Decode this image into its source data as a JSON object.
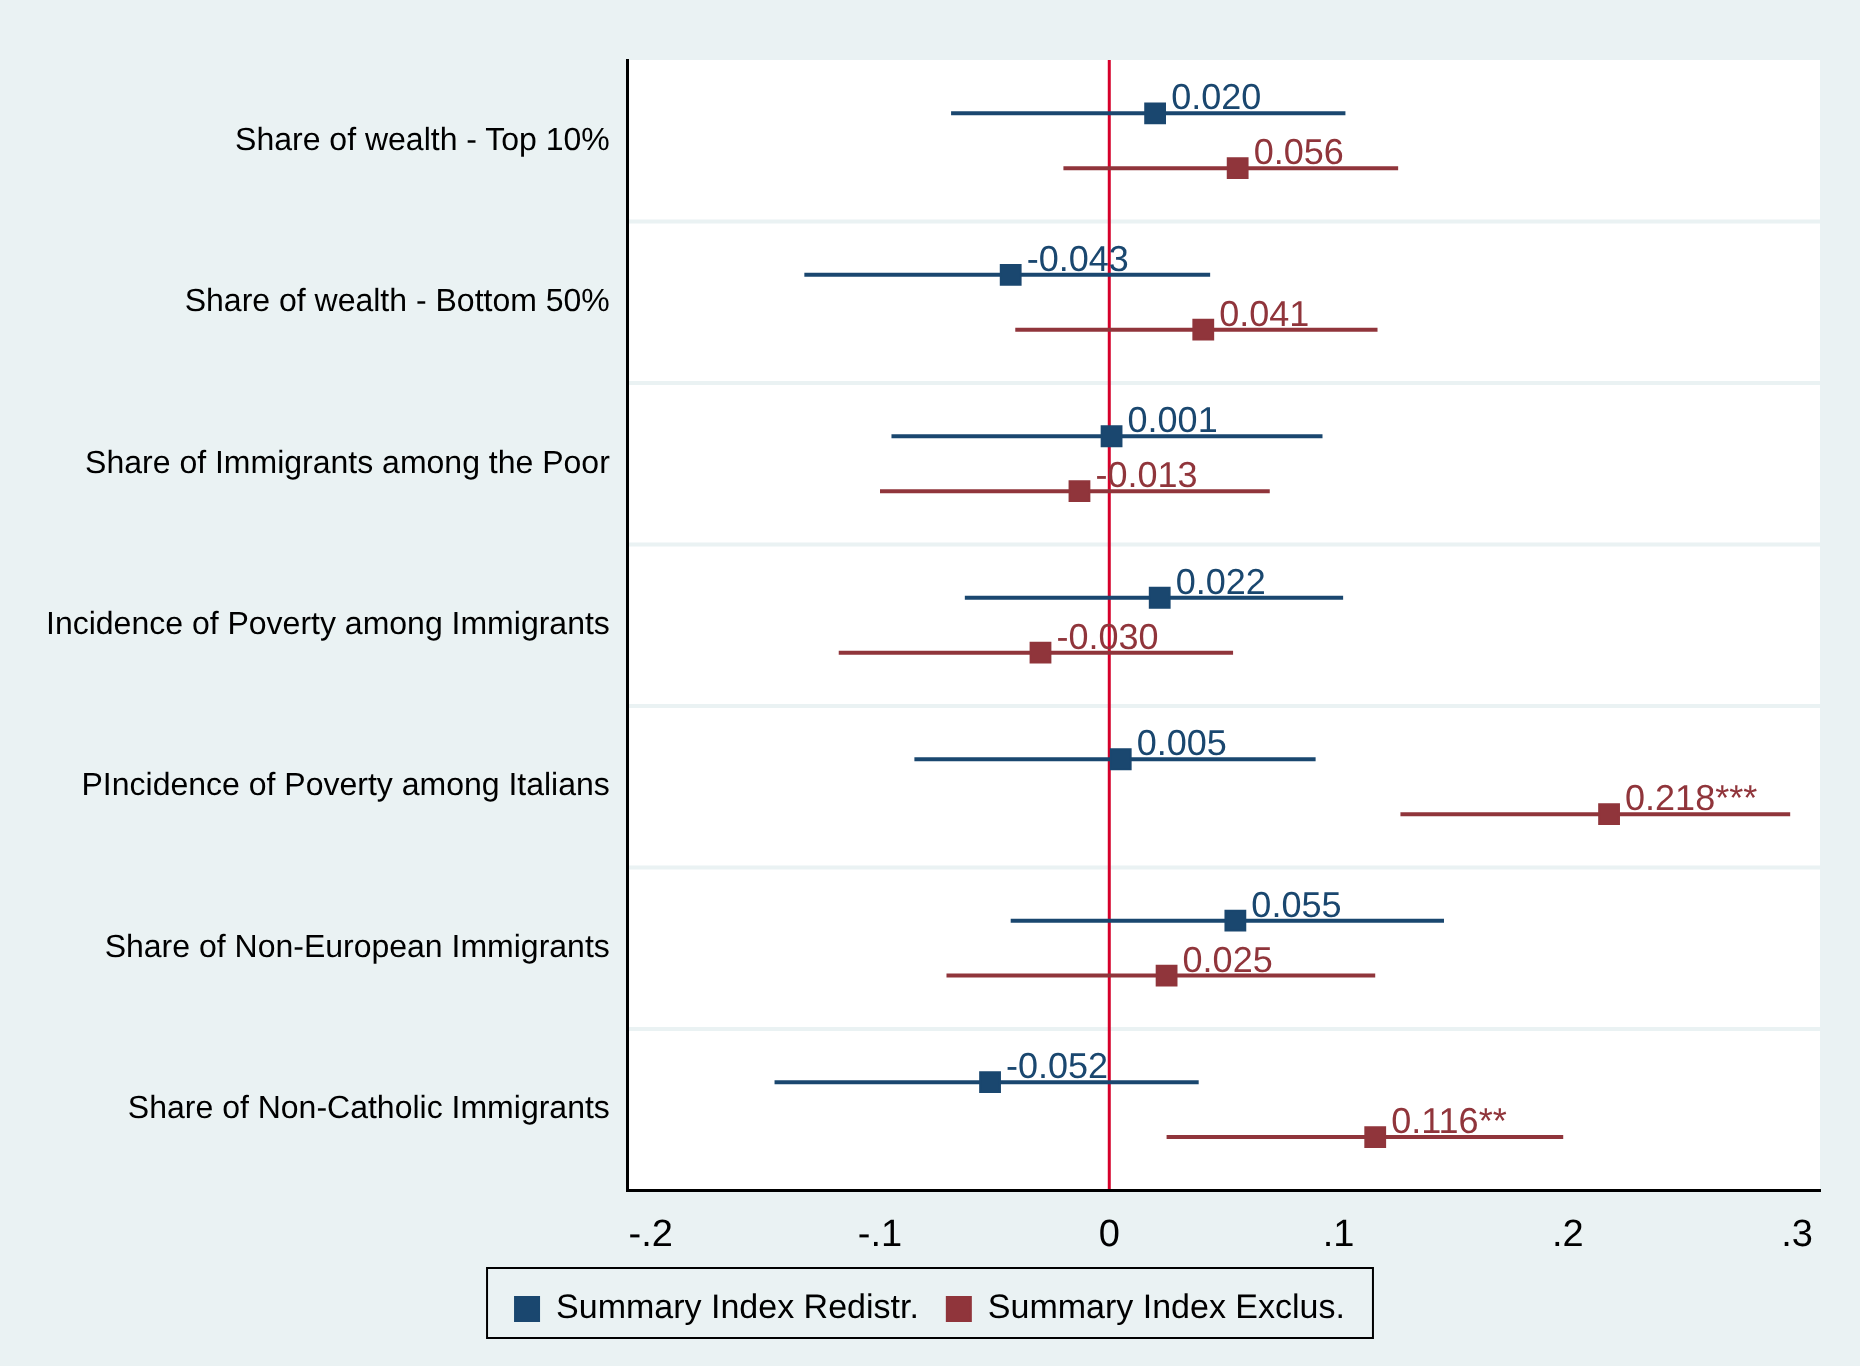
{
  "chart_data": {
    "type": "scatter",
    "orientation": "horizontal",
    "categories": [
      "Share of wealth - Top 10%",
      "Share of wealth - Bottom 50%",
      "Share of Immigrants among the Poor",
      "Incidence of Poverty among Immigrants",
      "PIncidence of Poverty among Italians",
      "Share of Non-European Immigrants",
      "Share of Non-Catholic Immigrants"
    ],
    "series": [
      {
        "name": "Summary Index Redistr.",
        "color": "#1a476f",
        "values": [
          0.02,
          -0.043,
          0.001,
          0.022,
          0.005,
          0.055,
          -0.052
        ],
        "errors": [
          [
            -0.069,
            0.103
          ],
          [
            -0.133,
            0.044
          ],
          [
            -0.095,
            0.093
          ],
          [
            -0.063,
            0.102
          ],
          [
            -0.085,
            0.09
          ],
          [
            -0.043,
            0.146
          ],
          [
            -0.146,
            0.039
          ]
        ],
        "value_labels": [
          "0.020",
          "-0.043",
          "0.001",
          "0.022",
          "0.005",
          "0.055",
          "-0.052"
        ]
      },
      {
        "name": "Summary Index Exclus.",
        "color": "#90353b",
        "values": [
          0.056,
          0.041,
          -0.013,
          -0.03,
          0.218,
          0.025,
          0.116
        ],
        "errors": [
          [
            -0.02,
            0.126
          ],
          [
            -0.041,
            0.117
          ],
          [
            -0.1,
            0.07
          ],
          [
            -0.118,
            0.054
          ],
          [
            0.127,
            0.297
          ],
          [
            -0.071,
            0.116
          ],
          [
            0.025,
            0.198
          ]
        ],
        "value_labels": [
          "0.056",
          "0.041",
          "-0.013",
          "-0.030",
          "0.218***",
          "0.025",
          "0.116**"
        ]
      }
    ],
    "xlim": [
      -0.21,
      0.31
    ],
    "xticks": [
      {
        "value": -0.2,
        "label": "-.2"
      },
      {
        "value": -0.1,
        "label": "-.1"
      },
      0,
      {
        "value": 0.1,
        "label": ".1"
      },
      {
        "value": 0.2,
        "label": ".2"
      },
      {
        "value": 0.3,
        "label": ".3"
      }
    ],
    "ref_lines": [
      {
        "axis": "x",
        "value": 0,
        "color": "#d6002a"
      }
    ],
    "grid": "y",
    "legend": "bottom",
    "marker": "square"
  }
}
